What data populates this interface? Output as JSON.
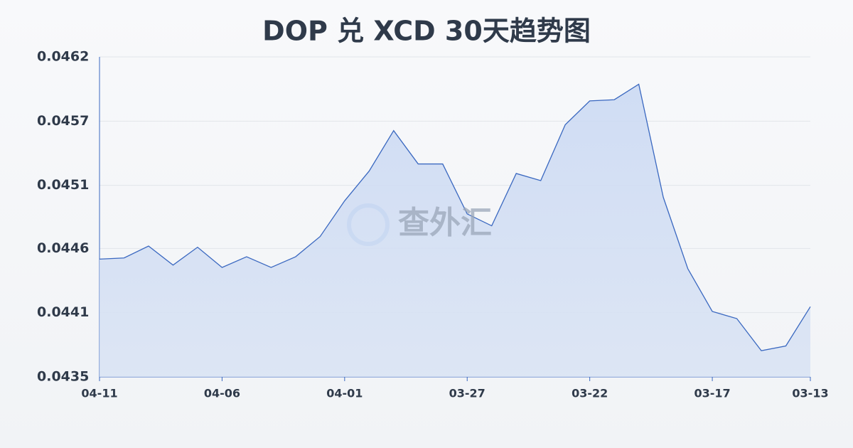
{
  "chart_data": {
    "type": "area",
    "title": "DOP 兑 XCD 30天趋势图",
    "watermark": "查外汇",
    "categories": [
      "04-11",
      null,
      null,
      null,
      null,
      "04-06",
      null,
      null,
      null,
      null,
      "04-01",
      null,
      null,
      null,
      null,
      "03-27",
      null,
      null,
      null,
      null,
      "03-22",
      null,
      null,
      null,
      null,
      "03-17",
      null,
      null,
      null,
      "03-13"
    ],
    "series": [
      {
        "color": "#3a68c0",
        "values": [
          0.04451,
          0.04452,
          0.04462,
          0.04446,
          0.04461,
          0.04444,
          0.04453,
          0.04444,
          0.04453,
          0.0447,
          0.045,
          0.04525,
          0.04559,
          0.04531,
          0.04531,
          0.04489,
          0.04479,
          0.04523,
          0.04517,
          0.04564,
          0.04584,
          0.04585,
          0.04598,
          0.04503,
          0.04443,
          0.04407,
          0.04401,
          0.04374,
          0.04378,
          0.04411
        ]
      }
    ],
    "ylim": [
      0.04352,
      0.04621
    ],
    "yticks": [
      {
        "value": 0.04352,
        "label": "0.0435"
      },
      {
        "value": 0.04406,
        "label": "0.0441"
      },
      {
        "value": 0.0446,
        "label": "0.0446"
      },
      {
        "value": 0.04513,
        "label": "0.0451"
      },
      {
        "value": 0.04567,
        "label": "0.0457"
      },
      {
        "value": 0.04621,
        "label": "0.0462"
      }
    ],
    "grid": true
  }
}
